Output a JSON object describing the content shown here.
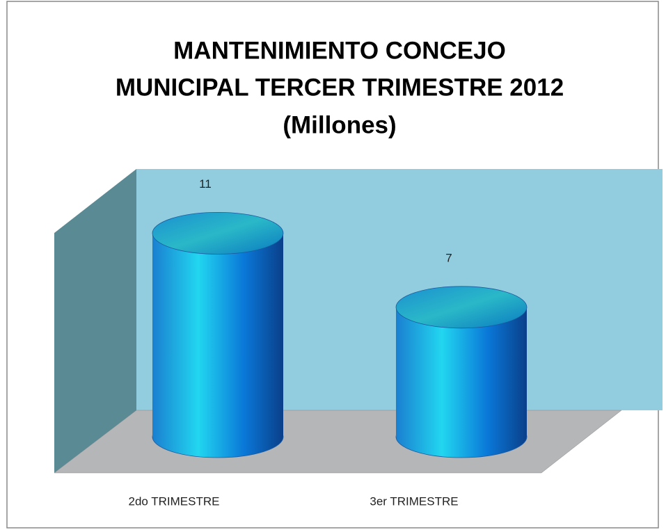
{
  "chart_data": {
    "type": "bar",
    "title": [
      "MANTENIMIENTO CONCEJO",
      "MUNICIPAL TERCER TRIMESTRE 2012",
      "(Millones)"
    ],
    "categories": [
      "2do TRIMESTRE",
      "3er TRIMESTRE"
    ],
    "values": [
      11,
      7
    ],
    "color": "#1a8fe0"
  }
}
